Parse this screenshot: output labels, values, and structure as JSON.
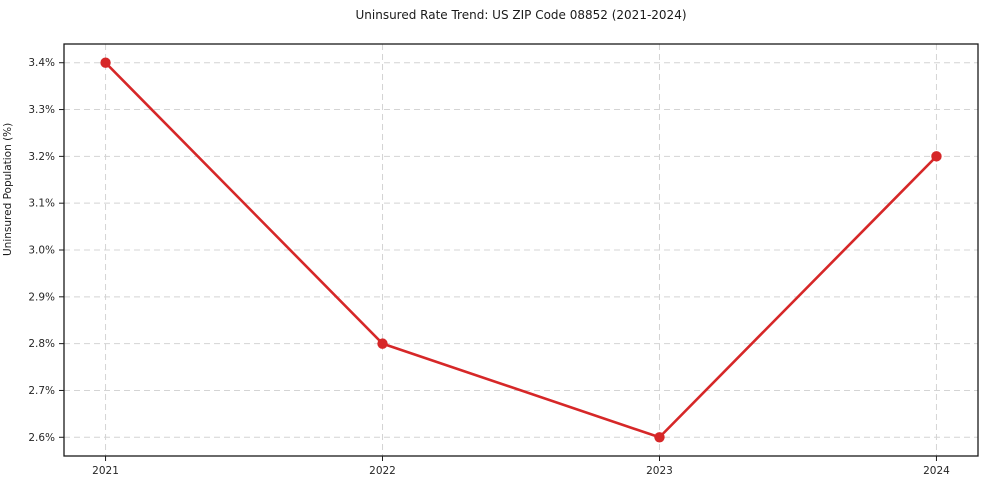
{
  "chart_data": {
    "type": "line",
    "title": "Uninsured Rate Trend: US ZIP Code 08852 (2021-2024)",
    "xlabel": "",
    "ylabel": "Uninsured Population (%)",
    "x": [
      2021,
      2022,
      2023,
      2024
    ],
    "values": [
      3.4,
      2.8,
      2.6,
      3.2
    ],
    "x_tick_labels": [
      "2021",
      "2022",
      "2023",
      "2024"
    ],
    "y_tick_values": [
      2.6,
      2.7,
      2.8,
      2.9,
      3.0,
      3.1,
      3.2,
      3.3,
      3.4
    ],
    "y_tick_labels": [
      "2.6%",
      "2.7%",
      "2.8%",
      "2.9%",
      "3.0%",
      "3.1%",
      "3.2%",
      "3.3%",
      "3.4%"
    ],
    "xlim": [
      2020.85,
      2024.15
    ],
    "ylim": [
      2.56,
      3.44
    ],
    "grid": true,
    "legend_position": "none",
    "line_color": "#d62728",
    "marker": "circle",
    "grid_color": "#d4d4d4",
    "spine_color": "#1a1a1a",
    "tick_label_color": "#262626"
  }
}
